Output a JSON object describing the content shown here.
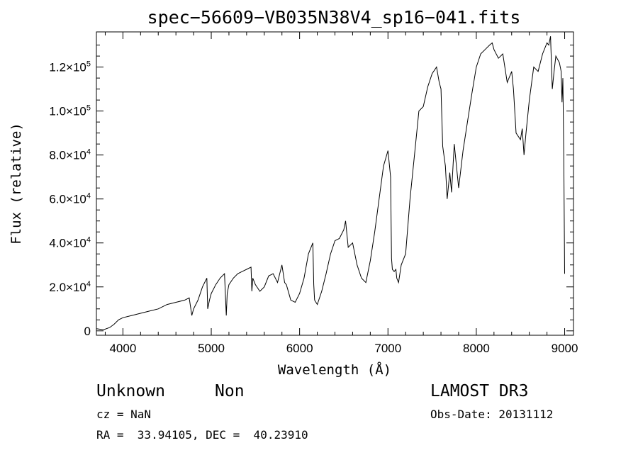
{
  "chart_data": {
    "type": "line",
    "title": "spec−56609−VB035N38V4_sp16−041.fits",
    "xlabel": "Wavelength (Å)",
    "ylabel": "Flux (relative)",
    "xlim": [
      3700,
      9100
    ],
    "ylim": [
      -2000,
      136000
    ],
    "x_ticks": [
      4000,
      5000,
      6000,
      7000,
      8000,
      9000
    ],
    "y_ticks": [
      {
        "value": 0,
        "mantissa": "0",
        "exponent": ""
      },
      {
        "value": 20000,
        "mantissa": "2.0×10",
        "exponent": "4"
      },
      {
        "value": 40000,
        "mantissa": "4.0×10",
        "exponent": "4"
      },
      {
        "value": 60000,
        "mantissa": "6.0×10",
        "exponent": "4"
      },
      {
        "value": 80000,
        "mantissa": "8.0×10",
        "exponent": "4"
      },
      {
        "value": 100000,
        "mantissa": "1.0×10",
        "exponent": "5"
      },
      {
        "value": 120000,
        "mantissa": "1.2×10",
        "exponent": "5"
      }
    ],
    "series": [
      {
        "name": "spectrum",
        "x": [
          3700,
          3780,
          3850,
          3900,
          3950,
          4000,
          4100,
          4200,
          4300,
          4400,
          4500,
          4600,
          4700,
          4750,
          4780,
          4800,
          4850,
          4900,
          4950,
          4960,
          4980,
          5000,
          5050,
          5100,
          5150,
          5170,
          5180,
          5200,
          5250,
          5300,
          5350,
          5400,
          5450,
          5460,
          5470,
          5500,
          5550,
          5600,
          5650,
          5700,
          5750,
          5800,
          5830,
          5850,
          5900,
          5950,
          6000,
          6050,
          6100,
          6150,
          6160,
          6170,
          6200,
          6250,
          6300,
          6350,
          6400,
          6450,
          6500,
          6520,
          6550,
          6600,
          6650,
          6700,
          6750,
          6800,
          6850,
          6900,
          6950,
          7000,
          7030,
          7040,
          7050,
          7070,
          7090,
          7100,
          7120,
          7150,
          7200,
          7250,
          7300,
          7350,
          7400,
          7450,
          7500,
          7550,
          7580,
          7600,
          7620,
          7650,
          7670,
          7700,
          7720,
          7750,
          7800,
          7850,
          7900,
          7950,
          8000,
          8050,
          8100,
          8150,
          8180,
          8200,
          8250,
          8300,
          8350,
          8400,
          8420,
          8450,
          8500,
          8520,
          8540,
          8560,
          8600,
          8650,
          8700,
          8750,
          8800,
          8820,
          8840,
          8860,
          8880,
          8900,
          8940,
          8960,
          8970,
          8980,
          8990,
          9000
        ],
        "y": [
          1000,
          500,
          1500,
          3000,
          5000,
          6000,
          7000,
          8000,
          9000,
          10000,
          12000,
          13000,
          14000,
          15000,
          7000,
          10000,
          14000,
          20000,
          24000,
          10000,
          14000,
          17000,
          21000,
          24000,
          26000,
          7000,
          17000,
          21000,
          24000,
          26000,
          27000,
          28000,
          29000,
          18000,
          24000,
          21000,
          18000,
          20000,
          25000,
          26000,
          22000,
          30000,
          22000,
          21000,
          14000,
          13000,
          17000,
          24000,
          35000,
          40000,
          21000,
          14000,
          12000,
          18000,
          26000,
          35000,
          41000,
          42000,
          46000,
          50000,
          38000,
          40000,
          30000,
          24000,
          22000,
          32000,
          45000,
          60000,
          75000,
          82000,
          70000,
          33000,
          28000,
          27000,
          28000,
          24000,
          22000,
          30000,
          35000,
          60000,
          80000,
          100000,
          102000,
          111000,
          117000,
          120000,
          113000,
          110000,
          84000,
          75000,
          60000,
          72000,
          63000,
          85000,
          65000,
          82000,
          95000,
          108000,
          120000,
          126000,
          128000,
          130000,
          131000,
          128000,
          124000,
          126000,
          113000,
          118000,
          110000,
          90000,
          87000,
          92000,
          80000,
          89000,
          105000,
          120000,
          118000,
          126000,
          131000,
          130000,
          134000,
          110000,
          118000,
          125000,
          122000,
          118000,
          104000,
          115000,
          80000,
          26000
        ]
      }
    ]
  },
  "footer": {
    "object_class": "Unknown",
    "subclass": "Non",
    "survey": "LAMOST DR3",
    "cz": "cz = NaN",
    "obs_date": "Obs-Date: 20131112",
    "coords": "RA =  33.94105, DEC =  40.23910"
  }
}
